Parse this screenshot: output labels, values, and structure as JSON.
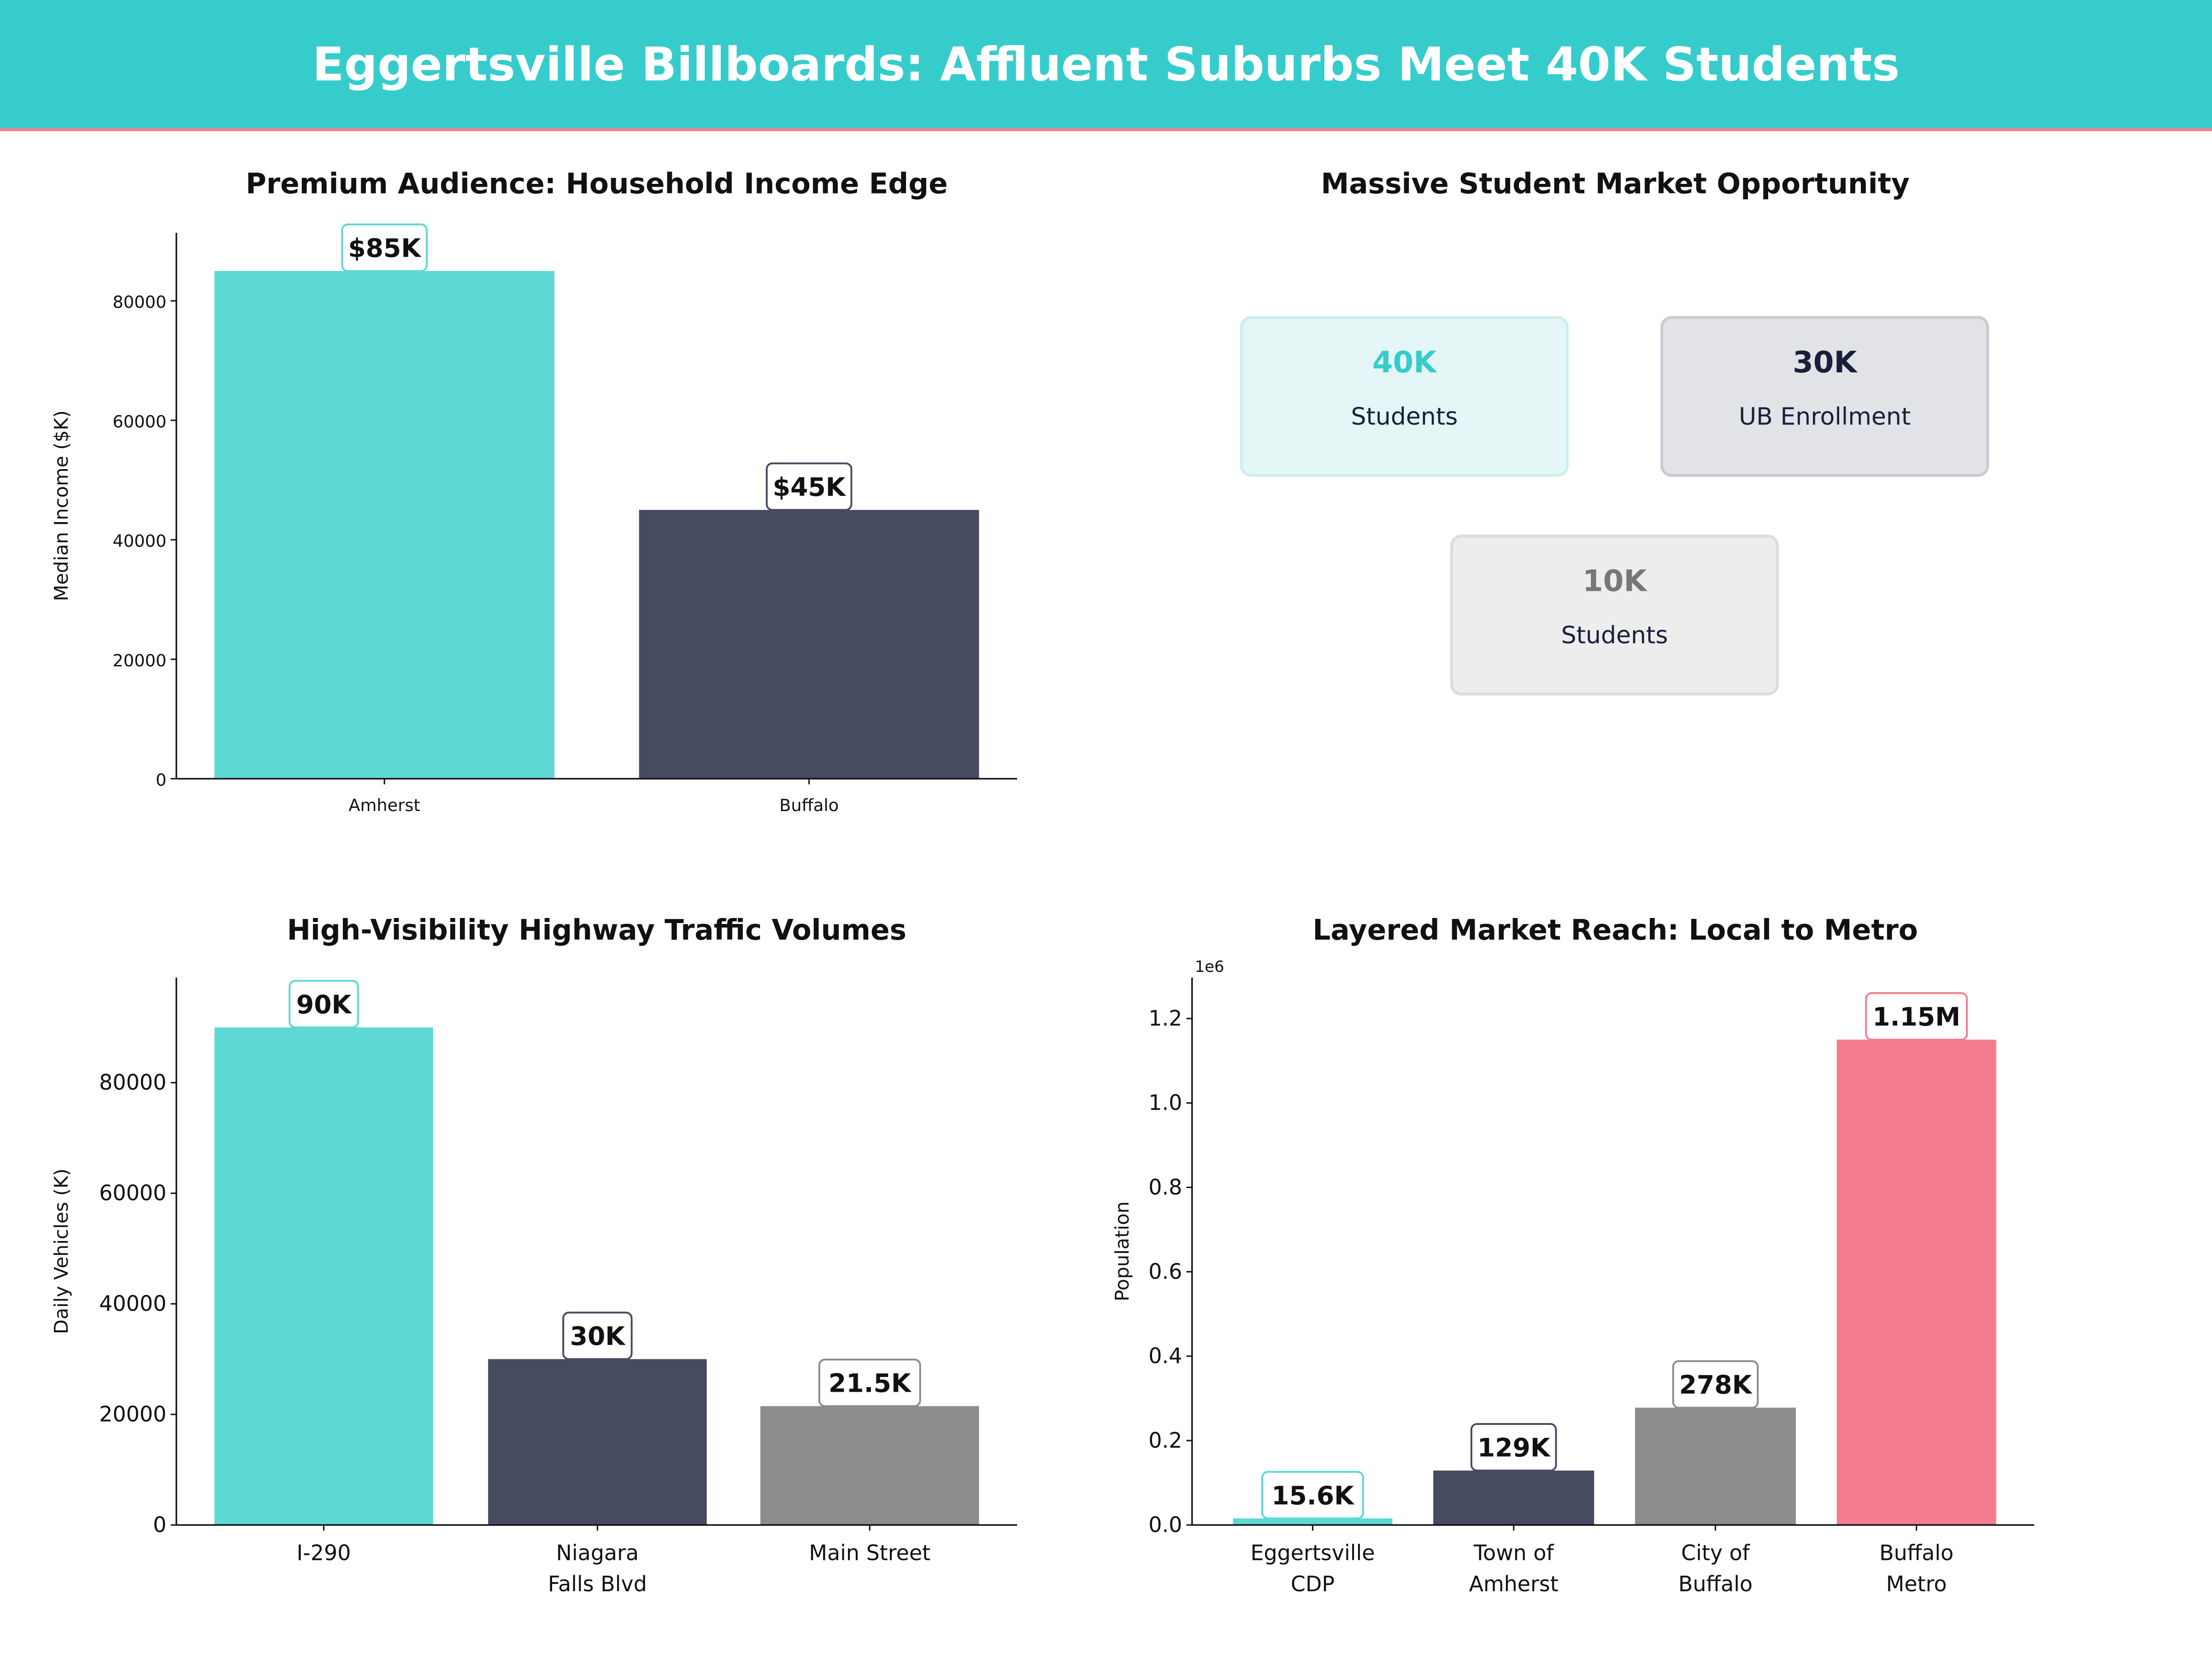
{
  "header": {
    "title": "Eggertsville Billboards: Affluent Suburbs Meet 40K Students",
    "bg_color": "#36CCCC",
    "rule_color": "#F47C8F"
  },
  "student_panel": {
    "title": "Massive Student Market Opportunity",
    "cards": [
      {
        "value": "40K",
        "label": "Students",
        "value_color": "#36CCCC",
        "bg": "#E4F7F6",
        "border": "#CDEFEE"
      },
      {
        "value": "30K",
        "label": "UB Enrollment",
        "value_color": "#1A1F3A",
        "bg": "#E2E3E7",
        "border": "#C9CAD2"
      },
      {
        "value": "10K",
        "label": "Students",
        "value_color": "#777777",
        "bg": "#EDEDED",
        "border": "#DCDCDC"
      }
    ]
  },
  "chart_data": [
    {
      "type": "bar",
      "title": "Premium Audience: Household Income Edge",
      "ylabel": "Median Income ($K)",
      "xlabel": "",
      "categories": [
        "Amherst",
        "Buffalo"
      ],
      "values": [
        85000,
        45000
      ],
      "data_labels": [
        "$85K",
        "$45K"
      ],
      "colors": [
        "#5DD8D4",
        "#474B60"
      ],
      "ylim": [
        0,
        91400
      ],
      "yticks": [
        0,
        20000,
        40000,
        60000,
        80000
      ],
      "ytick_labels": [
        "0",
        "20000",
        "40000",
        "60000",
        "80000"
      ],
      "grid": false
    },
    {
      "type": "bar",
      "title": "High-Visibility Highway Traffic Volumes",
      "ylabel": "Daily Vehicles (K)",
      "xlabel": "",
      "categories": [
        "I-290",
        "Niagara\nFalls Blvd",
        "Main Street"
      ],
      "values": [
        90000,
        30000,
        21500
      ],
      "data_labels": [
        "90K",
        "30K",
        "21.5K"
      ],
      "colors": [
        "#5DD8D4",
        "#474B60",
        "#8C8C8C"
      ],
      "ylim": [
        0,
        99000
      ],
      "yticks": [
        0,
        20000,
        40000,
        60000,
        80000
      ],
      "ytick_labels": [
        "0",
        "20000",
        "40000",
        "60000",
        "80000"
      ],
      "grid": false
    },
    {
      "type": "bar",
      "title": "Layered Market Reach: Local to Metro",
      "ylabel": "Population",
      "xlabel": "",
      "offset_label": "1e6",
      "categories": [
        "Eggertsville\nCDP",
        "Town of\nAmherst",
        "City of\nBuffalo",
        "Buffalo\nMetro"
      ],
      "values": [
        15600,
        129000,
        278000,
        1150000
      ],
      "data_labels": [
        "15.6K",
        "129K",
        "278K",
        "1.15M"
      ],
      "colors": [
        "#5DD8D4",
        "#474B60",
        "#8C8C8C",
        "#F47C8F"
      ],
      "ylim": [
        0,
        1297000
      ],
      "yticks": [
        0,
        200000,
        400000,
        600000,
        800000,
        1000000,
        1200000
      ],
      "ytick_labels": [
        "0.0",
        "0.2",
        "0.4",
        "0.6",
        "0.8",
        "1.0",
        "1.2"
      ],
      "grid": false
    }
  ]
}
